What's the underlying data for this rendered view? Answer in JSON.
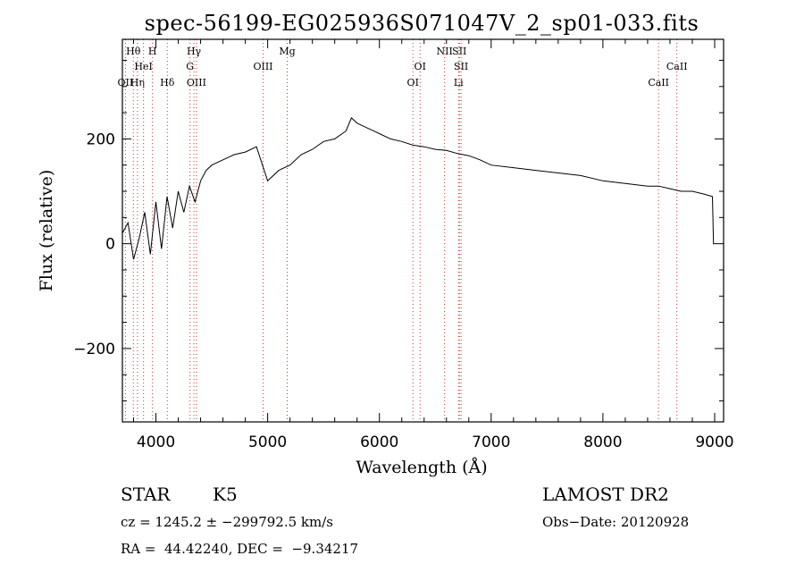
{
  "chart_data": {
    "type": "line",
    "title": "spec-56199-EG025936S071047V_2_sp01-033.fits",
    "xlabel": "Wavelength (Å)",
    "ylabel": "Flux (relative)",
    "xlim": [
      3700,
      9080
    ],
    "ylim": [
      -340,
      390
    ],
    "xticks": [
      4000,
      5000,
      6000,
      7000,
      8000,
      9000
    ],
    "yticks": [
      -200,
      0,
      200
    ],
    "grid": false,
    "series": [
      {
        "x": [
          3700,
          3750,
          3800,
          3850,
          3900,
          3950,
          4000,
          4050,
          4100,
          4150,
          4200,
          4250,
          4300,
          4350,
          4400,
          4450,
          4500,
          4600,
          4700,
          4800,
          4900,
          5000,
          5100,
          5200,
          5300,
          5400,
          5500,
          5600,
          5700,
          5750,
          5800,
          5850,
          5900,
          5950,
          6000,
          6100,
          6200,
          6300,
          6400,
          6500,
          6600,
          6700,
          6800,
          6900,
          7000,
          7200,
          7400,
          7600,
          7800,
          8000,
          8200,
          8400,
          8500,
          8600,
          8700,
          8800,
          8900,
          8980,
          8990,
          9000
        ],
        "y": [
          20,
          40,
          -30,
          10,
          60,
          -20,
          80,
          -10,
          90,
          30,
          100,
          60,
          110,
          80,
          120,
          140,
          150,
          160,
          170,
          175,
          185,
          120,
          140,
          150,
          170,
          180,
          195,
          200,
          215,
          240,
          230,
          225,
          220,
          215,
          210,
          200,
          195,
          188,
          185,
          180,
          178,
          172,
          168,
          160,
          150,
          145,
          140,
          135,
          130,
          120,
          115,
          110,
          110,
          105,
          100,
          100,
          95,
          90,
          0,
          0
        ]
      }
    ],
    "line_markers": [
      {
        "label": "OII",
        "x": 3727,
        "row": 2
      },
      {
        "label": "Hθ",
        "x": 3798,
        "row": 0
      },
      {
        "label": "Hη",
        "x": 3835,
        "row": 2
      },
      {
        "label": "HeI",
        "x": 3889,
        "row": 1
      },
      {
        "label": "H",
        "x": 3969,
        "row": 0
      },
      {
        "label": "Hδ",
        "x": 4102,
        "row": 2
      },
      {
        "label": "Hγ",
        "x": 4340,
        "row": 0
      },
      {
        "label": "G",
        "x": 4305,
        "row": 1
      },
      {
        "label": "OIII",
        "x": 4363,
        "row": 2
      },
      {
        "label": "OIII",
        "x": 4959,
        "row": 1
      },
      {
        "label": "Mg",
        "x": 5175,
        "row": 0
      },
      {
        "label": "OI",
        "x": 6300,
        "row": 2
      },
      {
        "label": "OI",
        "x": 6364,
        "row": 1
      },
      {
        "label": "NII",
        "x": 6583,
        "row": 0
      },
      {
        "label": "SII",
        "x": 6716,
        "row": 0
      },
      {
        "label": "SII",
        "x": 6731,
        "row": 1
      },
      {
        "label": "Li",
        "x": 6708,
        "row": 2
      },
      {
        "label": "CaII",
        "x": 8498,
        "row": 2
      },
      {
        "label": "CaII",
        "x": 8662,
        "row": 1
      }
    ]
  },
  "info": {
    "object_class": "STAR",
    "subclass": "K5",
    "survey": "LAMOST DR2",
    "cz": "cz = 1245.2 ± −299792.5 km/s",
    "obs_date": "Obs−Date: 20120928",
    "coords": "RA =  44.42240, DEC =  −9.34217"
  }
}
